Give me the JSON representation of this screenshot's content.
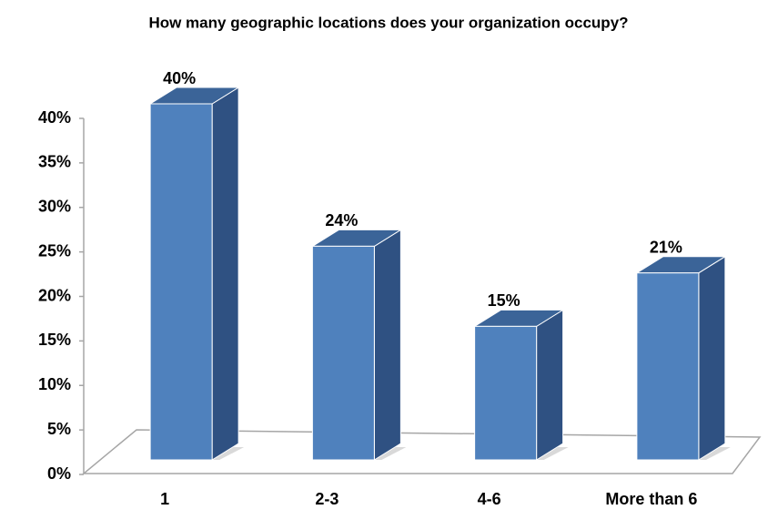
{
  "chart_data": {
    "type": "bar3d",
    "title": "How many geographic locations does your organization occupy?",
    "categories": [
      "1",
      "2-3",
      "4-6",
      "More than 6"
    ],
    "values": [
      40,
      24,
      15,
      21
    ],
    "value_labels": [
      "40%",
      "24%",
      "15%",
      "21%"
    ],
    "color": "#4f81bd",
    "ylim": [
      0,
      40
    ],
    "yticks": [
      {
        "value": 0,
        "label": "0%"
      },
      {
        "value": 5,
        "label": "5%"
      },
      {
        "value": 10,
        "label": "10%"
      },
      {
        "value": 15,
        "label": "15%"
      },
      {
        "value": 20,
        "label": "20%"
      },
      {
        "value": 25,
        "label": "25%"
      },
      {
        "value": 30,
        "label": "30%"
      },
      {
        "value": 35,
        "label": "35%"
      },
      {
        "value": 40,
        "label": "40%"
      }
    ]
  }
}
